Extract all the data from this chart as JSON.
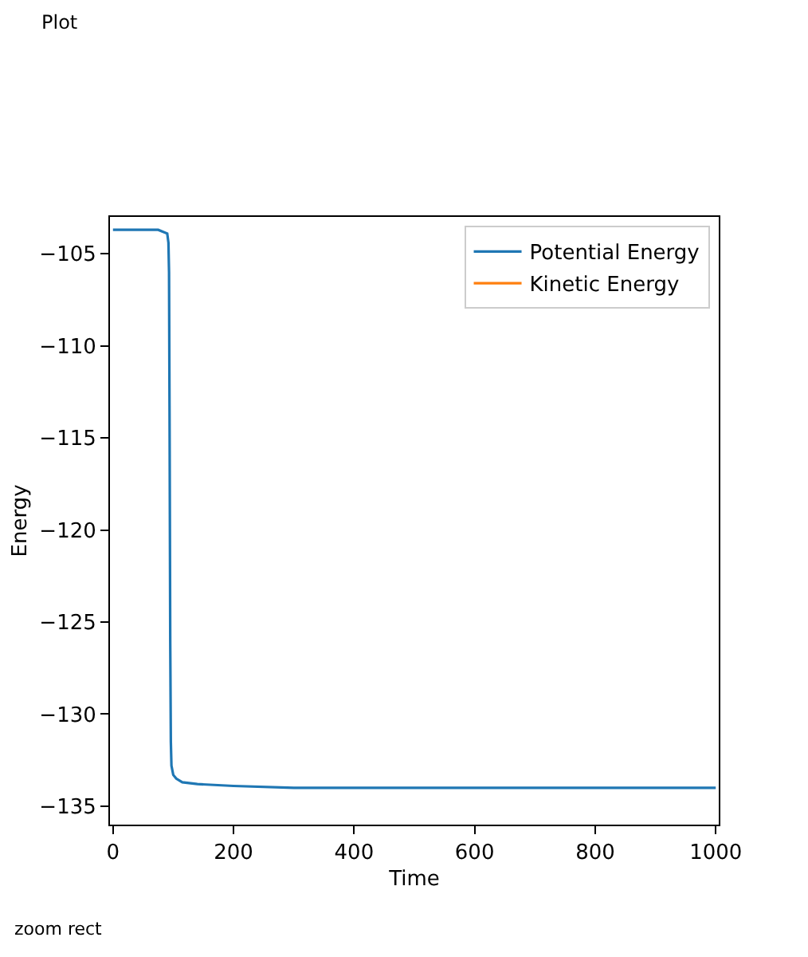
{
  "chart_data": {
    "type": "line",
    "title": "Plot",
    "xlabel": "Time",
    "ylabel": "Energy",
    "annotations": [
      "zoom rect"
    ],
    "x": [
      0,
      75,
      90,
      92,
      93,
      94,
      95,
      96,
      97,
      100,
      105,
      115,
      140,
      200,
      300,
      1000
    ],
    "series": [
      {
        "name": "Potential Energy",
        "color": "#1f77b4",
        "values": [
          -103.7,
          -103.7,
          -103.9,
          -104.4,
          -106,
          -115,
          -126,
          -131.5,
          -132.8,
          -133.3,
          -133.5,
          -133.7,
          -133.8,
          -133.9,
          -134.0,
          -134.0
        ]
      },
      {
        "name": "Kinetic Energy",
        "color": "#ff7f0e",
        "values": [
          null,
          null,
          null,
          null,
          null,
          null,
          null,
          null,
          null,
          null,
          null,
          null,
          null,
          null,
          null,
          null
        ]
      }
    ],
    "xlim": [
      -5,
      1005
    ],
    "ylim": [
      -136,
      -103
    ],
    "xticks": [
      0,
      200,
      400,
      600,
      800,
      1000
    ],
    "yticks": [
      -135,
      -130,
      -125,
      -120,
      -115,
      -110,
      -105
    ],
    "legend": "top right",
    "line_style": "solid"
  }
}
